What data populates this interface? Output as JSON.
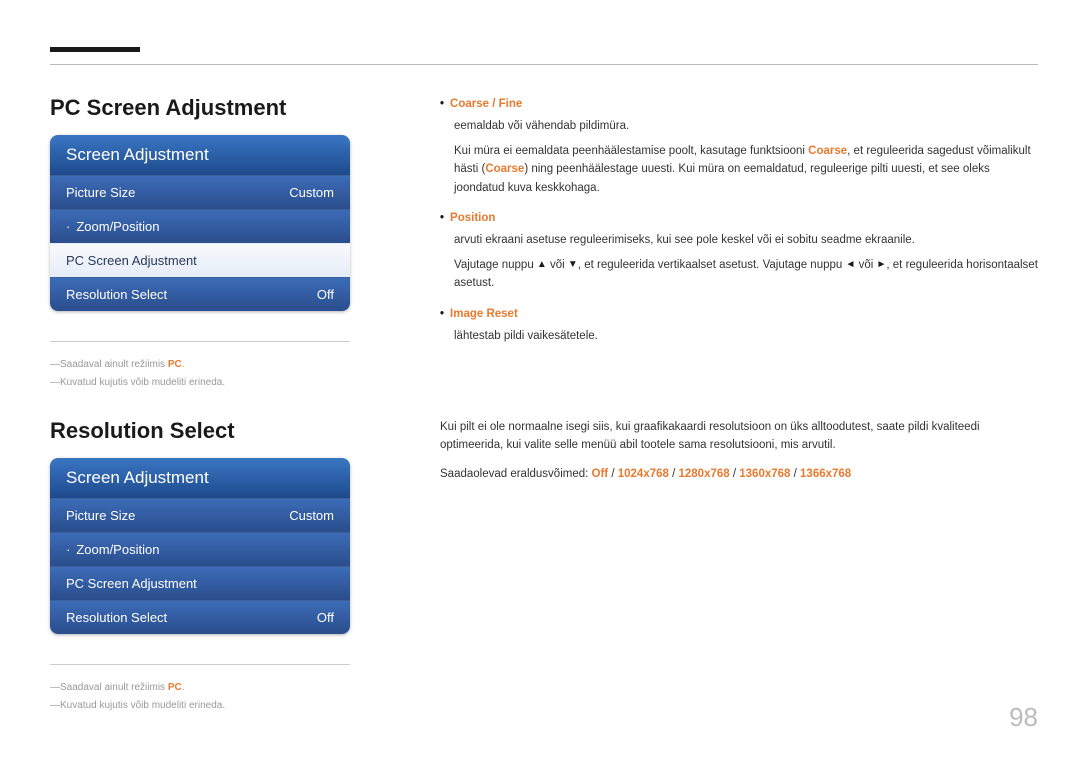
{
  "pageNumber": "98",
  "section1": {
    "title": "PC Screen Adjustment",
    "menu": {
      "header": "Screen Adjustment",
      "items": [
        {
          "label": "Picture Size",
          "value": "Custom",
          "selected": false,
          "dotted": false
        },
        {
          "label": "Zoom/Position",
          "value": "",
          "selected": false,
          "dotted": true
        },
        {
          "label": "PC Screen Adjustment",
          "value": "",
          "selected": true,
          "dotted": false
        },
        {
          "label": "Resolution Select",
          "value": "Off",
          "selected": false,
          "dotted": false
        }
      ]
    },
    "footnotes": [
      {
        "prefix": "Saadaval ainult režiimis ",
        "orange": "PC",
        "suffix": "."
      },
      {
        "prefix": "Kuvatud kujutis võib mudeliti erineda.",
        "orange": "",
        "suffix": ""
      }
    ],
    "bullets": {
      "b1": {
        "head": "Coarse / Fine",
        "line1": "eemaldab või vähendab pildimüra.",
        "line2a": "Kui müra ei eemaldata peenhäälestamise poolt, kasutage funktsiooni ",
        "line2b": "Coarse",
        "line2c": ", et reguleerida sagedust võimalikult hästi (",
        "line2d": "Coarse",
        "line2e": ") ning peenhäälestage uuesti. Kui müra on eemaldatud, reguleerige pilti uuesti, et see oleks joondatud kuva keskkohaga."
      },
      "b2": {
        "head": "Position",
        "line1": "arvuti ekraani asetuse reguleerimiseks, kui see pole keskel või ei sobitu seadme ekraanile.",
        "line2a": "Vajutage nuppu ",
        "line2b": " või ",
        "line2c": ", et reguleerida vertikaalset asetust. Vajutage nuppu ",
        "line2d": " või ",
        "line2e": ", et reguleerida horisontaalset asetust."
      },
      "b3": {
        "head": "Image Reset",
        "line1": "lähtestab pildi vaikesätetele."
      }
    }
  },
  "section2": {
    "title": "Resolution Select",
    "menu": {
      "header": "Screen Adjustment",
      "items": [
        {
          "label": "Picture Size",
          "value": "Custom",
          "selected": false,
          "dotted": false
        },
        {
          "label": "Zoom/Position",
          "value": "",
          "selected": false,
          "dotted": true
        },
        {
          "label": "PC Screen Adjustment",
          "value": "",
          "selected": false,
          "dotted": false
        },
        {
          "label": "Resolution Select",
          "value": "Off",
          "selected": false,
          "dotted": false
        }
      ]
    },
    "footnotes": [
      {
        "prefix": "Saadaval ainult režiimis ",
        "orange": "PC",
        "suffix": "."
      },
      {
        "prefix": "Kuvatud kujutis võib mudeliti erineda.",
        "orange": "",
        "suffix": ""
      }
    ],
    "desc": {
      "line1": "Kui pilt ei ole normaalne isegi siis, kui graafikakaardi resolutsioon on üks alltoodutest, saate pildi kvaliteedi optimeerida, kui valite selle menüü abil tootele sama resolutsiooni, mis arvutil.",
      "line2a": "Saadaolevad eraldusvõimed: ",
      "res": [
        "Off",
        "1024x768",
        "1280x768",
        "1360x768",
        "1366x768"
      ]
    }
  },
  "colors": {
    "orange": "#e8792f",
    "menuGradTop": "#3c6cb8",
    "menuGradBot": "#2a4d8c",
    "headerGradTop": "#3a76c4",
    "headerGradBot": "#1e4a8c"
  }
}
